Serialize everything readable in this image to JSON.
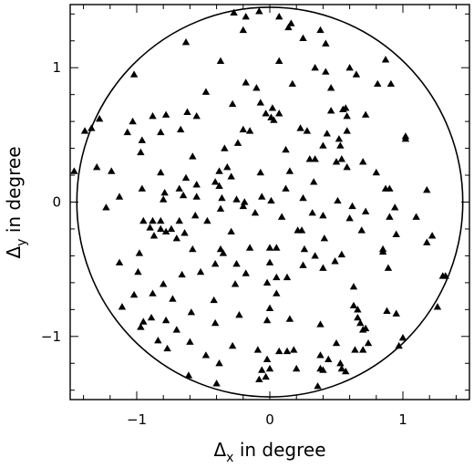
{
  "chart_data": {
    "type": "scatter",
    "title": "",
    "xlabel": {
      "symbol": "Δ",
      "subscript": "x",
      "text": " in degree"
    },
    "ylabel": {
      "symbol": "Δ",
      "subscript": "y",
      "text": " in degree"
    },
    "xlim": [
      -1.5,
      1.5
    ],
    "ylim": [
      -1.47,
      1.47
    ],
    "xticks": [
      {
        "value": -1,
        "label": "−1"
      },
      {
        "value": 0,
        "label": "0"
      },
      {
        "value": 1,
        "label": "1"
      }
    ],
    "yticks": [
      {
        "value": -1,
        "label": "−1"
      },
      {
        "value": 0,
        "label": "0"
      },
      {
        "value": 1,
        "label": "1"
      }
    ],
    "minor_tick_step": 0.2,
    "grid": false,
    "marker": "triangle",
    "marker_color": "#000000",
    "circle": {
      "center": [
        0,
        0
      ],
      "radius": 1.45
    },
    "series": [
      {
        "points": [
          [
            -0.27,
            1.41
          ],
          [
            -0.18,
            1.38
          ],
          [
            -0.08,
            1.42
          ],
          [
            0.07,
            1.38
          ],
          [
            0.16,
            1.33
          ],
          [
            0.14,
            1.3
          ],
          [
            0.38,
            1.28
          ],
          [
            0.25,
            1.22
          ],
          [
            0.42,
            1.18
          ],
          [
            -0.2,
            1.28
          ],
          [
            -0.63,
            1.19
          ],
          [
            0.87,
            1.06
          ],
          [
            -1.02,
            0.95
          ],
          [
            -0.37,
            1.05
          ],
          [
            0.07,
            1.05
          ],
          [
            0.6,
            1.0
          ],
          [
            0.65,
            0.95
          ],
          [
            0.17,
            0.88
          ],
          [
            0.34,
            1.0
          ],
          [
            0.42,
            0.97
          ],
          [
            0.81,
            0.88
          ],
          [
            0.91,
            0.88
          ],
          [
            -0.48,
            0.82
          ],
          [
            -0.18,
            0.89
          ],
          [
            -0.1,
            0.85
          ],
          [
            -0.28,
            0.73
          ],
          [
            0.46,
            0.85
          ],
          [
            0.46,
            0.68
          ],
          [
            0.72,
            0.65
          ],
          [
            -0.62,
            0.67
          ],
          [
            -0.07,
            0.74
          ],
          [
            0.02,
            0.7
          ],
          [
            0.07,
            0.66
          ],
          [
            -1.28,
            0.62
          ],
          [
            -1.39,
            0.53
          ],
          [
            -1.34,
            0.55
          ],
          [
            -1.03,
            0.6
          ],
          [
            -0.88,
            0.64
          ],
          [
            -0.78,
            0.65
          ],
          [
            -0.55,
            0.64
          ],
          [
            0.55,
            0.69
          ],
          [
            0.57,
            0.7
          ],
          [
            -0.03,
            0.66
          ],
          [
            0.58,
            0.64
          ],
          [
            -1.07,
            0.52
          ],
          [
            -0.96,
            0.46
          ],
          [
            -0.82,
            0.52
          ],
          [
            -0.67,
            0.54
          ],
          [
            -0.2,
            0.54
          ],
          [
            -0.15,
            0.53
          ],
          [
            0.01,
            0.63
          ],
          [
            0.03,
            0.61
          ],
          [
            0.43,
            0.51
          ],
          [
            0.23,
            0.55
          ],
          [
            0.28,
            0.53
          ],
          [
            0.58,
            0.53
          ],
          [
            -0.97,
            0.37
          ],
          [
            -0.58,
            0.34
          ],
          [
            -0.24,
            0.44
          ],
          [
            -0.34,
            0.4
          ],
          [
            0.12,
            0.39
          ],
          [
            0.52,
            0.47
          ],
          [
            0.53,
            0.42
          ],
          [
            0.4,
            0.42
          ],
          [
            1.02,
            0.49
          ],
          [
            1.02,
            0.47
          ],
          [
            -1.47,
            0.23
          ],
          [
            -1.3,
            0.26
          ],
          [
            -1.19,
            0.23
          ],
          [
            -0.82,
            0.22
          ],
          [
            -0.63,
            0.18
          ],
          [
            -0.38,
            0.23
          ],
          [
            -0.32,
            0.26
          ],
          [
            -0.41,
            0.15
          ],
          [
            -0.38,
            0.12
          ],
          [
            -0.07,
            0.22
          ],
          [
            0.15,
            0.23
          ],
          [
            0.3,
            0.32
          ],
          [
            0.34,
            0.32
          ],
          [
            0.5,
            0.3
          ],
          [
            0.54,
            0.32
          ],
          [
            0.58,
            0.26
          ],
          [
            0.7,
            0.3
          ],
          [
            0.8,
            0.22
          ],
          [
            -0.96,
            0.1
          ],
          [
            -0.79,
            0.07
          ],
          [
            -0.68,
            0.1
          ],
          [
            -0.55,
            0.13
          ],
          [
            -0.29,
            0.19
          ],
          [
            -0.25,
            0.02
          ],
          [
            -0.19,
            0.0
          ],
          [
            0.12,
            0.1
          ],
          [
            0.33,
            0.15
          ],
          [
            0.87,
            0.1
          ],
          [
            0.9,
            0.1
          ],
          [
            1.18,
            0.09
          ],
          [
            -1.13,
            0.04
          ],
          [
            -0.8,
            0.02
          ],
          [
            -0.55,
            0.04
          ],
          [
            -0.65,
            0.05
          ],
          [
            -0.36,
            0.03
          ],
          [
            -0.06,
            0.04
          ],
          [
            0.01,
            0.01
          ],
          [
            0.25,
            0.03
          ],
          [
            0.51,
            0.01
          ],
          [
            0.62,
            -0.03
          ],
          [
            0.94,
            -0.04
          ],
          [
            -1.23,
            -0.04
          ],
          [
            -0.2,
            -0.03
          ],
          [
            -0.95,
            -0.14
          ],
          [
            -0.88,
            -0.14
          ],
          [
            -0.82,
            -0.14
          ],
          [
            -0.68,
            -0.14
          ],
          [
            -0.56,
            -0.1
          ],
          [
            -0.47,
            -0.14
          ],
          [
            -0.37,
            -0.05
          ],
          [
            -0.11,
            -0.08
          ],
          [
            0.09,
            -0.11
          ],
          [
            0.32,
            -0.08
          ],
          [
            0.4,
            -0.1
          ],
          [
            0.6,
            -0.12
          ],
          [
            0.72,
            -0.07
          ],
          [
            0.9,
            -0.11
          ],
          [
            1.1,
            -0.11
          ],
          [
            -0.9,
            -0.19
          ],
          [
            -0.82,
            -0.2
          ],
          [
            -0.78,
            -0.22
          ],
          [
            -0.74,
            -0.2
          ],
          [
            -0.64,
            -0.23
          ],
          [
            -0.29,
            -0.22
          ],
          [
            0.21,
            -0.21
          ],
          [
            0.24,
            -0.21
          ],
          [
            0.41,
            -0.27
          ],
          [
            0.69,
            -0.21
          ],
          [
            0.95,
            -0.24
          ],
          [
            1.22,
            -0.25
          ],
          [
            1.18,
            -0.3
          ],
          [
            -0.87,
            -0.25
          ],
          [
            -0.7,
            -0.27
          ],
          [
            -0.58,
            -0.35
          ],
          [
            -0.98,
            -0.38
          ],
          [
            -0.37,
            -0.35
          ],
          [
            -0.35,
            -0.38
          ],
          [
            -0.15,
            -0.34
          ],
          [
            0.0,
            -0.34
          ],
          [
            0.05,
            -0.34
          ],
          [
            0.26,
            -0.35
          ],
          [
            0.34,
            -0.4
          ],
          [
            0.54,
            -0.39
          ],
          [
            0.49,
            -0.44
          ],
          [
            0.85,
            -0.35
          ],
          [
            0.85,
            -0.37
          ],
          [
            -1.13,
            -0.45
          ],
          [
            -0.99,
            -0.52
          ],
          [
            -0.41,
            -0.46
          ],
          [
            -0.25,
            -0.46
          ],
          [
            0.0,
            -0.45
          ],
          [
            0.25,
            -0.47
          ],
          [
            0.4,
            -0.49
          ],
          [
            0.89,
            -0.49
          ],
          [
            -0.66,
            -0.54
          ],
          [
            -0.52,
            -0.52
          ],
          [
            -0.18,
            -0.53
          ],
          [
            0.05,
            -0.56
          ],
          [
            0.13,
            -0.56
          ],
          [
            1.3,
            -0.55
          ],
          [
            1.32,
            -0.55
          ],
          [
            -1.02,
            -0.69
          ],
          [
            -0.88,
            -0.68
          ],
          [
            -0.8,
            -0.61
          ],
          [
            -0.26,
            -0.61
          ],
          [
            -0.02,
            -0.6
          ],
          [
            0.05,
            -0.68
          ],
          [
            0.63,
            -0.63
          ],
          [
            -1.11,
            -0.78
          ],
          [
            -0.73,
            -0.72
          ],
          [
            -0.42,
            -0.73
          ],
          [
            0.0,
            -0.79
          ],
          [
            0.88,
            -0.81
          ],
          [
            1.26,
            -0.78
          ],
          [
            -0.59,
            -0.82
          ],
          [
            -0.23,
            -0.84
          ],
          [
            0.63,
            -0.77
          ],
          [
            0.66,
            -0.8
          ],
          [
            0.95,
            -0.83
          ],
          [
            -0.95,
            -0.89
          ],
          [
            -0.89,
            -0.86
          ],
          [
            -0.78,
            -0.88
          ],
          [
            -0.41,
            -0.9
          ],
          [
            -0.02,
            -0.88
          ],
          [
            0.15,
            -0.87
          ],
          [
            0.66,
            -0.86
          ],
          [
            0.68,
            -0.9
          ],
          [
            0.38,
            -0.91
          ],
          [
            -0.97,
            -0.93
          ],
          [
            -0.7,
            -0.95
          ],
          [
            0.72,
            -0.94
          ],
          [
            0.7,
            -0.95
          ],
          [
            -0.84,
            -1.03
          ],
          [
            -0.6,
            -1.04
          ],
          [
            -0.28,
            -1.07
          ],
          [
            0.07,
            -1.11
          ],
          [
            0.13,
            -1.11
          ],
          [
            0.18,
            -1.1
          ],
          [
            0.5,
            -1.05
          ],
          [
            0.74,
            -1.05
          ],
          [
            0.7,
            -1.1
          ],
          [
            0.97,
            -1.07
          ],
          [
            1.0,
            -1.01
          ],
          [
            -0.77,
            -1.09
          ],
          [
            -0.48,
            -1.14
          ],
          [
            -0.38,
            -1.2
          ],
          [
            -0.09,
            -1.1
          ],
          [
            -0.02,
            -1.17
          ],
          [
            0.38,
            -1.14
          ],
          [
            0.38,
            -1.24
          ],
          [
            0.44,
            -1.17
          ],
          [
            0.53,
            -1.2
          ],
          [
            0.64,
            -1.1
          ],
          [
            -0.06,
            -1.25
          ],
          [
            0.0,
            -1.24
          ],
          [
            0.2,
            -1.24
          ],
          [
            0.4,
            -1.25
          ],
          [
            0.54,
            -1.24
          ],
          [
            -0.61,
            -1.29
          ],
          [
            -0.4,
            -1.35
          ],
          [
            -0.08,
            -1.32
          ],
          [
            -0.03,
            -1.3
          ],
          [
            0.36,
            -1.37
          ],
          [
            0.57,
            -1.26
          ]
        ]
      }
    ]
  }
}
